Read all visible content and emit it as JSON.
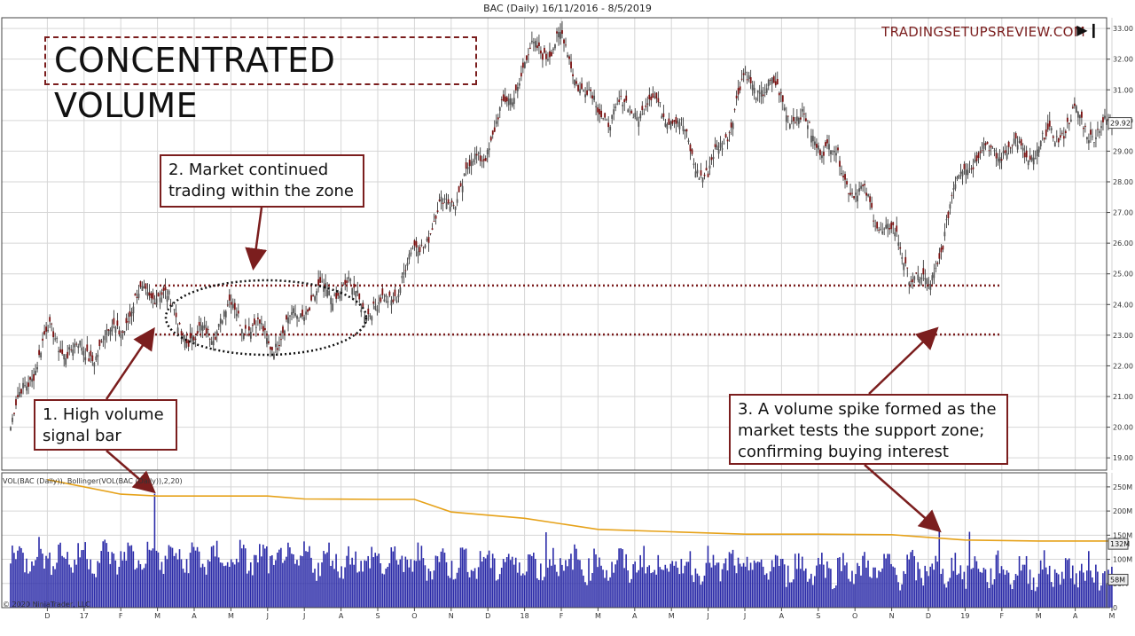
{
  "header": {
    "title": "BAC (Daily)  16/11/2016 - 8/5/2019"
  },
  "overlay": {
    "title": "CONCENTRATED VOLUME",
    "brand": "TRADINGSETUPSREVIEW.COM",
    "end_icon": "skip-to-end-icon"
  },
  "callouts": {
    "one": "1. High volume\nsignal bar",
    "two": "2. Market continued\ntrading within the zone",
    "three": "3. A volume spike formed as the\nmarket tests the support zone;\nconfirming buying interest"
  },
  "volume_panel": {
    "label": "VOL(BAC (Daily)), Bollinger(VOL(BAC (Daily)),2,20)"
  },
  "footer": {
    "copyright": "© 2020 NinjaTrader, LLC"
  },
  "colors": {
    "price_bar": "#222222",
    "volume_bar": "#2b2ba8",
    "bollinger": "#e6a21a",
    "annotation": "#7b1e1e",
    "grid": "#d6d6d6"
  },
  "chart_data": [
    {
      "type": "ohlc",
      "title": "BAC (Daily)  16/11/2016 - 8/5/2019",
      "x_tick_labels": [
        "D",
        "17",
        "F",
        "M",
        "A",
        "M",
        "J",
        "J",
        "A",
        "S",
        "O",
        "N",
        "D",
        "18",
        "F",
        "M",
        "A",
        "M",
        "J",
        "J",
        "A",
        "S",
        "O",
        "N",
        "D",
        "19",
        "F",
        "M",
        "A",
        "M"
      ],
      "y_tick_labels": [
        "19.00",
        "20.00",
        "21.00",
        "22.00",
        "23.00",
        "24.00",
        "25.00",
        "26.00",
        "27.00",
        "28.00",
        "29.00",
        "30.00",
        "31.00",
        "32.00",
        "33.00"
      ],
      "ylim": [
        18.6,
        33.35
      ],
      "last_price_label": "29.92",
      "grid": true,
      "annotations": {
        "support_zone_upper": 24.62,
        "support_zone_lower": 23.02
      },
      "series": [
        {
          "x": [
            "Nov 2016",
            "Dec 2016",
            "Jan 2017",
            "Feb 2017",
            "Mar 2017",
            "Apr 2017",
            "May 2017",
            "Jun 2017",
            "Jul 2017",
            "Aug 2017",
            "Sep 2017",
            "Oct 2017",
            "Nov 2017",
            "Dec 2017",
            "Jan 2018",
            "Feb 2018",
            "Mar 2018",
            "Apr 2018",
            "May 2018",
            "Jun 2018",
            "Jul 2018",
            "Aug 2018",
            "Sep 2018",
            "Oct 2018",
            "Nov 2018",
            "Dec 2018",
            "Jan 2019",
            "Feb 2019",
            "Mar 2019",
            "Apr 2019",
            "May 2019"
          ],
          "values": [
            20.0,
            22.8,
            22.6,
            23.2,
            24.5,
            23.0,
            23.6,
            22.8,
            24.1,
            24.3,
            23.9,
            25.7,
            27.2,
            29.5,
            31.8,
            32.4,
            30.5,
            30.2,
            30.3,
            28.3,
            31.0,
            30.9,
            29.5,
            27.5,
            26.5,
            24.3,
            28.6,
            29.4,
            28.8,
            30.0,
            29.9
          ]
        }
      ]
    },
    {
      "type": "bar",
      "title": "VOL(BAC (Daily)), Bollinger(VOL(BAC (Daily)),2,20)",
      "y_tick_labels": [
        "0",
        "50M",
        "100M",
        "150M",
        "200M",
        "250M"
      ],
      "ylim": [
        0,
        270
      ],
      "unit": "M",
      "labels_on_axis": [
        "132M",
        "58M"
      ],
      "series": [
        {
          "name": "Bollinger upper",
          "x": [
            "Dec 2016",
            "Feb 2017",
            "Mar 2017",
            "Jun 2017",
            "Jul 2017",
            "Sep 2017",
            "Oct 2017",
            "Nov 2017",
            "Jan 2018",
            "Mar 2018",
            "May 2018",
            "Jul 2018",
            "Sep 2018",
            "Nov 2018",
            "Jan 2019",
            "Mar 2019",
            "May 2019"
          ],
          "values": [
            265,
            235,
            231,
            231,
            225,
            224,
            224,
            198,
            185,
            162,
            157,
            152,
            152,
            151,
            140,
            138,
            138
          ]
        },
        {
          "name": "Volume spikes (M)",
          "x": [
            "Mar 2017 (signal bar)",
            "Feb 2018",
            "Dec 2018",
            "Jan 2019"
          ],
          "values": [
            236,
            156,
            160,
            157
          ]
        }
      ]
    }
  ]
}
